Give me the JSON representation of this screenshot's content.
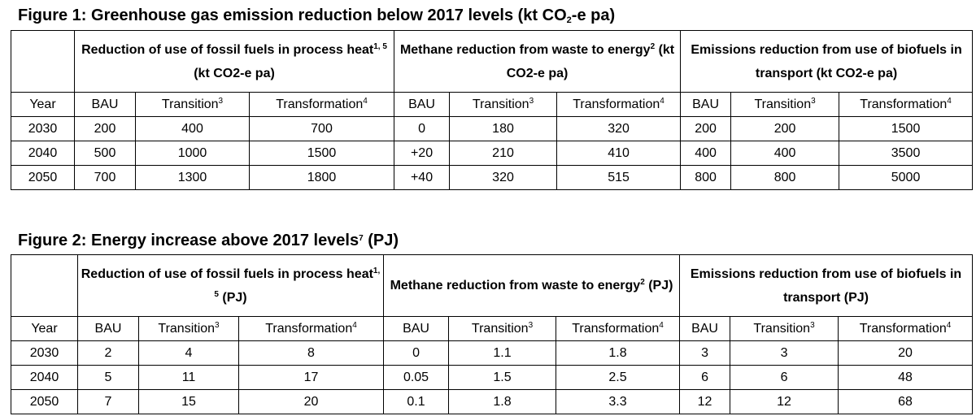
{
  "figure1": {
    "title_main": "Figure 1: Greenhouse gas emission reduction below 2017 levels (kt CO",
    "title_sub": "2",
    "title_end": "-e pa)",
    "groups": [
      {
        "text": "Reduction of use of fossil fuels in process heat",
        "sup": "1, 5",
        "suffix": " (kt CO2-e pa)"
      },
      {
        "text": "Methane reduction from waste to energy",
        "sup": "2",
        "suffix": " (kt CO2-e pa)"
      },
      {
        "text": "Emissions reduction from use of biofuels in transport (kt CO2-e pa)",
        "sup": "",
        "suffix": ""
      }
    ],
    "columns": [
      "Year",
      "BAU",
      "Transition",
      "Transformation",
      "BAU",
      "Transition",
      "Transformation",
      "BAU",
      "Transition",
      "Transformation"
    ],
    "column_sups": [
      "",
      "",
      "3",
      "4",
      "",
      "3",
      "4",
      "",
      "3",
      "4"
    ],
    "rows": [
      [
        "2030",
        "200",
        "400",
        "700",
        "0",
        "180",
        "320",
        "200",
        "200",
        "1500"
      ],
      [
        "2040",
        "500",
        "1000",
        "1500",
        "+20",
        "210",
        "410",
        "400",
        "400",
        "3500"
      ],
      [
        "2050",
        "700",
        "1300",
        "1800",
        "+40",
        "320",
        "515",
        "800",
        "800",
        "5000"
      ]
    ]
  },
  "figure2": {
    "title_main": "Figure 2: Energy increase above 2017 levels",
    "title_sup": "7",
    "title_end": " (PJ)",
    "groups": [
      {
        "text": "Reduction of use of fossil fuels in process heat",
        "sup": "1, 5",
        "suffix": " (PJ)"
      },
      {
        "text": "Methane reduction from waste to energy",
        "sup": "2",
        "suffix": " (PJ)"
      },
      {
        "text": "Emissions reduction from use of biofuels in transport (PJ)",
        "sup": "",
        "suffix": ""
      }
    ],
    "columns": [
      "Year",
      "BAU",
      "Transition",
      "Transformation",
      "BAU",
      "Transition",
      "Transformation",
      "BAU",
      "Transition",
      "Transformation"
    ],
    "column_sups": [
      "",
      "",
      "3",
      "4",
      "",
      "3",
      "4",
      "",
      "3",
      "4"
    ],
    "rows": [
      [
        "2030",
        "2",
        "4",
        "8",
        "0",
        "1.1",
        "1.8",
        "3",
        "3",
        "20"
      ],
      [
        "2040",
        "5",
        "11",
        "17",
        "0.05",
        "1.5",
        "2.5",
        "6",
        "6",
        "48"
      ],
      [
        "2050",
        "7",
        "15",
        "20",
        "0.1",
        "1.8",
        "3.3",
        "12",
        "12",
        "68"
      ]
    ]
  }
}
